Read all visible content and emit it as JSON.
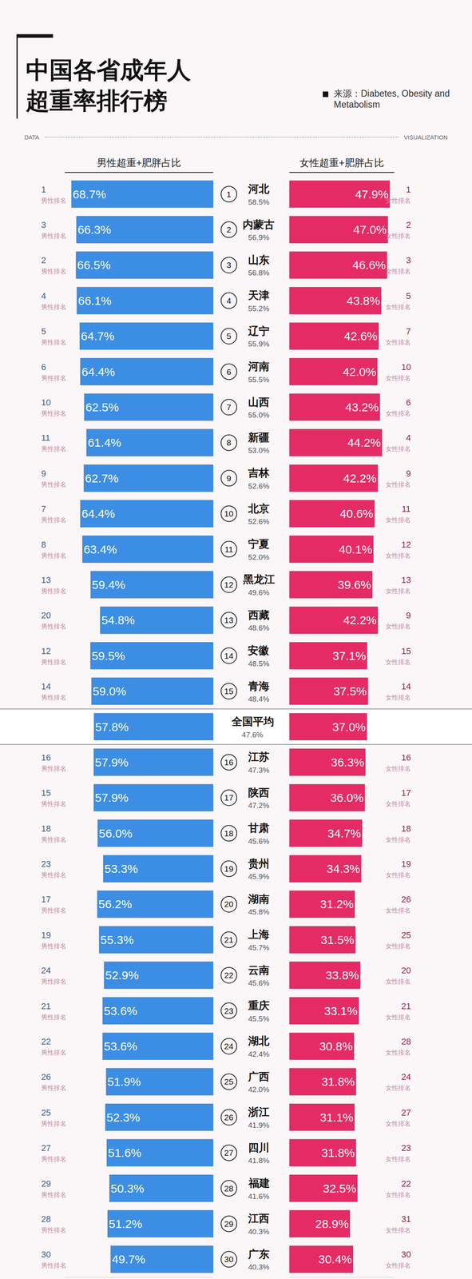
{
  "chart_data": {
    "type": "bar",
    "orientation": "horizontal",
    "title": "中国各省成年人\n超重率排行榜",
    "source": "来源：Diabetes, Obesity and Metabolism",
    "header_left": "DATA",
    "header_right": "VISUALIZATION",
    "data_labels": true,
    "tick_labels": false,
    "grid": false,
    "categories": [
      "河北",
      "内蒙古",
      "山东",
      "天津",
      "辽宁",
      "河南",
      "山西",
      "新疆",
      "吉林",
      "北京",
      "宁夏",
      "黑龙江",
      "西藏",
      "安徽",
      "青海",
      "全国平均",
      "江苏",
      "陕西",
      "甘肃",
      "贵州",
      "湖南",
      "上海",
      "云南",
      "重庆",
      "湖北",
      "广西",
      "浙江",
      "四川",
      "福建",
      "江西",
      "广东"
    ],
    "ranks": [
      1,
      2,
      3,
      4,
      5,
      6,
      7,
      8,
      9,
      10,
      11,
      12,
      13,
      14,
      15,
      null,
      16,
      17,
      18,
      19,
      20,
      21,
      22,
      23,
      24,
      25,
      26,
      27,
      28,
      29,
      30
    ],
    "overall": {
      "values": [
        58.5,
        56.9,
        56.8,
        55.2,
        55.9,
        55.5,
        55.0,
        53.0,
        52.6,
        52.6,
        52.0,
        49.6,
        48.6,
        48.5,
        48.4,
        47.6,
        47.3,
        47.2,
        45.6,
        45.9,
        45.8,
        45.7,
        45.6,
        45.5,
        42.4,
        42.0,
        41.9,
        41.8,
        41.6,
        40.3,
        40.3
      ],
      "value_labels": [
        "58.5%",
        "56.9%",
        "56.8%",
        "55.2%",
        "55.9%",
        "55.5%",
        "55.0%",
        "53.0%",
        "52.6%",
        "52.6%",
        "52.0%",
        "49.6%",
        "48.6%",
        "48.5%",
        "48.4%",
        "47.6%",
        "47.3%",
        "47.2%",
        "45.6%",
        "45.9%",
        "45.8%",
        "45.7%",
        "45.6%",
        "45.5%",
        "42.4%",
        "42.0%",
        "41.9%",
        "41.8%",
        "41.6%",
        "40.3%",
        "40.3%"
      ]
    },
    "series": [
      {
        "name": "男性超重+肥胖占比",
        "color": "#3c8ee4",
        "xlim": [
          0,
          72
        ],
        "values": [
          68.7,
          66.3,
          66.5,
          66.1,
          64.7,
          64.4,
          62.5,
          61.4,
          62.7,
          64.4,
          63.4,
          59.4,
          54.8,
          59.5,
          59.0,
          57.8,
          57.9,
          57.9,
          56.0,
          53.3,
          56.2,
          55.3,
          52.9,
          53.6,
          53.6,
          51.9,
          52.3,
          51.6,
          50.3,
          51.2,
          49.7
        ],
        "value_labels": [
          "68.7%",
          "66.3%",
          "66.5%",
          "66.1%",
          "64.7%",
          "64.4%",
          "62.5%",
          "61.4%",
          "62.7%",
          "64.4%",
          "63.4%",
          "59.4%",
          "54.8%",
          "59.5%",
          "59.0%",
          "57.8%",
          "57.9%",
          "57.9%",
          "56.0%",
          "53.3%",
          "56.2%",
          "55.3%",
          "52.9%",
          "53.6%",
          "53.6%",
          "51.9%",
          "52.3%",
          "51.6%",
          "50.3%",
          "51.2%",
          "49.7%"
        ],
        "ranks": [
          1,
          3,
          2,
          4,
          5,
          6,
          10,
          11,
          9,
          7,
          8,
          13,
          20,
          12,
          14,
          null,
          16,
          15,
          18,
          23,
          17,
          19,
          24,
          21,
          22,
          26,
          25,
          27,
          29,
          28,
          30
        ],
        "rank_label": "男性排名"
      },
      {
        "name": "女性超重+肥胖占比",
        "color": "#e52b65",
        "xlim": [
          0,
          50
        ],
        "values": [
          47.9,
          47.0,
          46.6,
          43.8,
          42.6,
          42.0,
          43.2,
          44.2,
          42.2,
          40.6,
          40.1,
          39.6,
          42.2,
          37.1,
          37.5,
          37.0,
          36.3,
          36.0,
          34.7,
          34.3,
          31.2,
          31.5,
          33.8,
          33.1,
          30.8,
          31.8,
          31.1,
          31.8,
          32.5,
          28.9,
          30.4
        ],
        "value_labels": [
          "47.9%",
          "47.0%",
          "46.6%",
          "43.8%",
          "42.6%",
          "42.0%",
          "43.2%",
          "44.2%",
          "42.2%",
          "40.6%",
          "40.1%",
          "39.6%",
          "42.2%",
          "37.1%",
          "37.5%",
          "37.0%",
          "36.3%",
          "36.0%",
          "34.7%",
          "34.3%",
          "31.2%",
          "31.5%",
          "33.8%",
          "33.1%",
          "30.8%",
          "31.8%",
          "31.1%",
          "31.8%",
          "32.5%",
          "28.9%",
          "30.4%"
        ],
        "ranks": [
          1,
          2,
          3,
          5,
          7,
          10,
          6,
          4,
          9,
          11,
          12,
          13,
          9,
          15,
          14,
          null,
          16,
          17,
          18,
          19,
          26,
          25,
          20,
          21,
          28,
          24,
          27,
          23,
          22,
          31,
          30
        ],
        "rank_label": "女性排名"
      }
    ]
  }
}
